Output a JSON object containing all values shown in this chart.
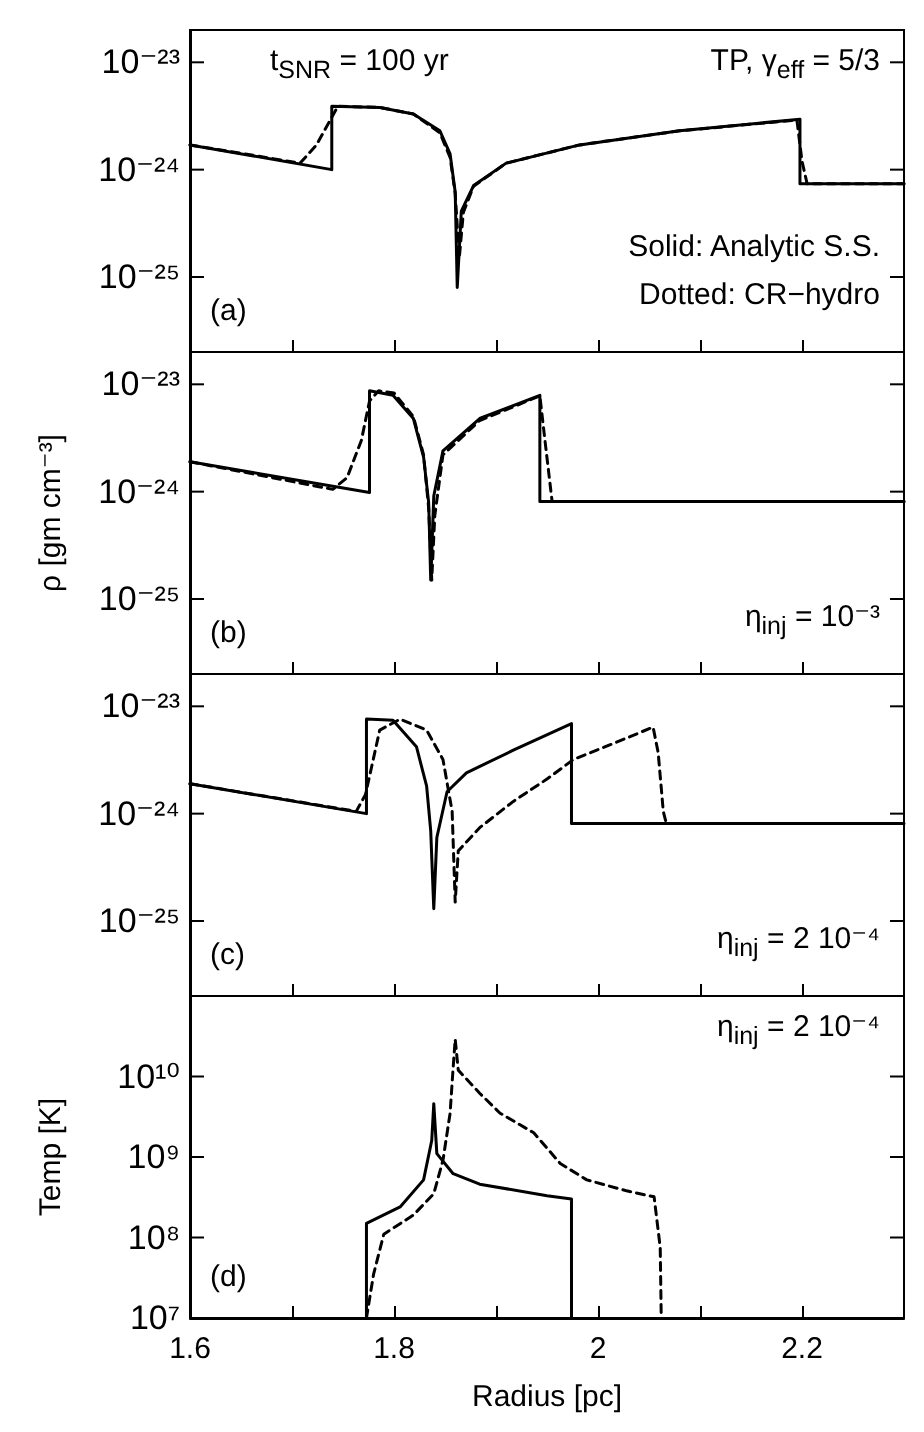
{
  "chart_data": [
    {
      "type": "line",
      "xlim": [
        1.6,
        2.3
      ],
      "xticks": [
        1.6,
        {
          "value": 1.7,
          "label": null
        },
        1.8,
        {
          "value": 1.9,
          "label": null
        },
        2,
        {
          "value": 2.1,
          "label": null
        },
        2.2
      ],
      "ylim": [
        2e-26,
        2e-23
      ],
      "yticks": [
        {
          "value": 1e-23,
          "label": "10⁻²³"
        },
        {
          "value": 1e-24,
          "label": "10⁻²⁴"
        },
        {
          "value": 1e-25,
          "label": "10⁻²⁵"
        }
      ],
      "log": "y",
      "tick_labels": "y",
      "annotations": [
        "t$_{SNR}$ = 100 yr",
        "TP, γ$_{eff}$ = 5/3",
        "Solid: Analytic S.S.",
        "Dotted: CR−hydro",
        "(a)"
      ],
      "series": [
        {
          "color": "#000000",
          "line_style": "solid",
          "x": [
            1.6,
            1.739,
            1.739,
            1.786,
            1.819,
            1.845,
            1.855,
            1.86,
            1.862,
            1.866,
            1.878,
            1.91,
            1.982,
            2.08,
            2.198,
            2.198,
            2.3
          ],
          "values": [
            1.7e-24,
            1e-24,
            3.9e-24,
            3.8e-24,
            3.3e-24,
            2.3e-24,
            1.4e-24,
            6.2e-25,
            8e-26,
            4.1e-25,
            7.1e-25,
            1.15e-24,
            1.7e-24,
            2.3e-24,
            2.95e-24,
            7.4e-25,
            7.4e-25
          ]
        },
        {
          "color": "#000000",
          "line_style": "dashed",
          "x": [
            1.6,
            1.708,
            1.724,
            1.745,
            1.786,
            1.819,
            1.845,
            1.855,
            1.86,
            1.864,
            1.868,
            1.878,
            1.91,
            1.982,
            2.08,
            2.195,
            2.2,
            2.205,
            2.3
          ],
          "values": [
            1.7e-24,
            1.15e-24,
            1.7e-24,
            3.9e-24,
            3.8e-24,
            3.3e-24,
            2.2e-24,
            1.3e-24,
            6e-25,
            1.5e-25,
            4e-25,
            7e-25,
            1.15e-24,
            1.7e-24,
            2.3e-24,
            2.9e-24,
            1.2e-24,
            7.4e-25,
            7.4e-25
          ]
        }
      ]
    },
    {
      "type": "line",
      "xlim": [
        1.6,
        2.3
      ],
      "xticks": [
        1.6,
        {
          "value": 1.7,
          "label": null
        },
        1.8,
        {
          "value": 1.9,
          "label": null
        },
        2,
        {
          "value": 2.1,
          "label": null
        },
        2.2
      ],
      "ylim": [
        2e-26,
        2e-23
      ],
      "yticks": [
        {
          "value": 1e-23,
          "label": "10⁻²³"
        },
        {
          "value": 1e-24,
          "label": "10⁻²⁴"
        },
        {
          "value": 1e-25,
          "label": "10⁻²⁵"
        }
      ],
      "log": "y",
      "tick_labels": "y",
      "ylabel": "ρ [gm cm⁻³]",
      "annotations": [
        "η$_{inj}$ = 10⁻³",
        "(b)"
      ],
      "series": [
        {
          "color": "#000000",
          "line_style": "solid",
          "x": [
            1.6,
            1.776,
            1.776,
            1.799,
            1.819,
            1.829,
            1.834,
            1.836,
            1.839,
            1.848,
            1.884,
            1.943,
            1.943,
            2.3
          ],
          "values": [
            1.9e-24,
            9.8e-25,
            8.7e-24,
            7.9e-24,
            4.8e-24,
            2.1e-24,
            7.9e-25,
            1.5e-25,
            9.1e-25,
            2.4e-24,
            4.8e-24,
            7.9e-24,
            8.1e-25,
            8.1e-25
          ]
        },
        {
          "color": "#000000",
          "line_style": "dashed",
          "x": [
            1.6,
            1.74,
            1.754,
            1.768,
            1.776,
            1.785,
            1.8,
            1.819,
            1.829,
            1.834,
            1.837,
            1.84,
            1.848,
            1.884,
            1.943,
            1.948,
            1.955,
            2.3
          ],
          "values": [
            1.9e-24,
            1.05e-24,
            1.35e-24,
            3e-24,
            7e-24,
            8.7e-24,
            8.3e-24,
            5e-24,
            2.2e-24,
            7e-25,
            1.5e-25,
            6e-25,
            2.2e-24,
            4.6e-24,
            7.8e-24,
            3e-24,
            8.1e-25,
            8.1e-25
          ]
        }
      ]
    },
    {
      "type": "line",
      "xlim": [
        1.6,
        2.3
      ],
      "xticks": [
        1.6,
        {
          "value": 1.7,
          "label": null
        },
        1.8,
        {
          "value": 1.9,
          "label": null
        },
        2,
        {
          "value": 2.1,
          "label": null
        },
        2.2
      ],
      "ylim": [
        2e-26,
        2e-23
      ],
      "yticks": [
        {
          "value": 1e-23,
          "label": "10⁻²³"
        },
        {
          "value": 1e-24,
          "label": "10⁻²⁴"
        },
        {
          "value": 1e-25,
          "label": "10⁻²⁵"
        }
      ],
      "log": "y",
      "tick_labels": "y",
      "annotations": [
        "η$_{inj}$ = 2 10⁻⁴",
        "(c)"
      ],
      "series": [
        {
          "color": "#000000",
          "line_style": "solid",
          "x": [
            1.6,
            1.773,
            1.773,
            1.799,
            1.822,
            1.832,
            1.836,
            1.839,
            1.842,
            1.852,
            1.871,
            1.917,
            1.974,
            1.974,
            2.3
          ],
          "values": [
            1.9e-24,
            1e-24,
            7.6e-24,
            7.4e-24,
            4.2e-24,
            1.8e-24,
            6.9e-25,
            1.3e-25,
            6e-25,
            1.6e-24,
            2.4e-24,
            3.9e-24,
            6.9e-24,
            8.1e-25,
            8.1e-25
          ]
        },
        {
          "color": "#000000",
          "line_style": "dashed",
          "x": [
            1.6,
            1.763,
            1.772,
            1.786,
            1.806,
            1.832,
            1.848,
            1.857,
            1.86,
            1.863,
            1.884,
            1.917,
            1.95,
            1.976,
            2.015,
            2.054,
            2.059,
            2.064,
            2.067,
            2.3
          ],
          "values": [
            1.9e-24,
            1.05e-24,
            1.5e-24,
            6e-24,
            7.6e-24,
            6e-24,
            3.2e-24,
            1.05e-24,
            1.5e-25,
            4.5e-25,
            7.4e-25,
            1.3e-24,
            2.1e-24,
            3.2e-24,
            4.5e-24,
            6.4e-24,
            3.7e-24,
            1.05e-24,
            8.1e-25,
            8.1e-25
          ]
        }
      ]
    },
    {
      "type": "line",
      "xlim": [
        1.6,
        2.3
      ],
      "xticks": [
        1.6,
        {
          "value": 1.7,
          "label": null
        },
        1.8,
        {
          "value": 1.9,
          "label": null
        },
        2,
        {
          "value": 2.1,
          "label": null
        },
        2.2
      ],
      "ylim": [
        10000000.0,
        100000000000.0
      ],
      "yticks": [
        {
          "value": 10000000.0,
          "label": "10⁷"
        },
        {
          "value": 100000000.0,
          "label": "10⁸"
        },
        {
          "value": 1000000000.0,
          "label": "10⁹"
        },
        {
          "value": 10000000000.0,
          "label": "10¹⁰"
        }
      ],
      "log": "y",
      "xlabel": "Radius [pc]",
      "ylabel": "Temp [K]",
      "annotations": [
        "η$_{inj}$ = 2 10⁻⁴",
        "(d)"
      ],
      "series": [
        {
          "color": "#000000",
          "line_style": "solid",
          "x": [
            1.773,
            1.773,
            1.806,
            1.829,
            1.837,
            1.839,
            1.842,
            1.858,
            1.884,
            1.95,
            1.974,
            1.974
          ],
          "values": [
            10000000.0,
            150000000.0,
            240000000.0,
            520000000.0,
            1600000000.0,
            4600000000.0,
            1100000000.0,
            620000000.0,
            460000000.0,
            330000000.0,
            300000000.0,
            10000000.0
          ]
        },
        {
          "color": "#000000",
          "line_style": "dashed",
          "x": [
            1.773,
            1.78,
            1.79,
            1.819,
            1.839,
            1.848,
            1.855,
            1.858,
            1.86,
            1.863,
            1.884,
            1.904,
            1.937,
            1.963,
            1.989,
            2.028,
            2.055,
            2.061,
            2.062
          ],
          "values": [
            10000000.0,
            35000000.0,
            110000000.0,
            190000000.0,
            350000000.0,
            910000000.0,
            3500000000.0,
            13000000000.0,
            29000000000.0,
            12000000000.0,
            6200000000.0,
            3500000000.0,
            2000000000.0,
            830000000.0,
            520000000.0,
            380000000.0,
            320000000.0,
            75000000.0,
            10000000.0
          ]
        }
      ]
    }
  ]
}
